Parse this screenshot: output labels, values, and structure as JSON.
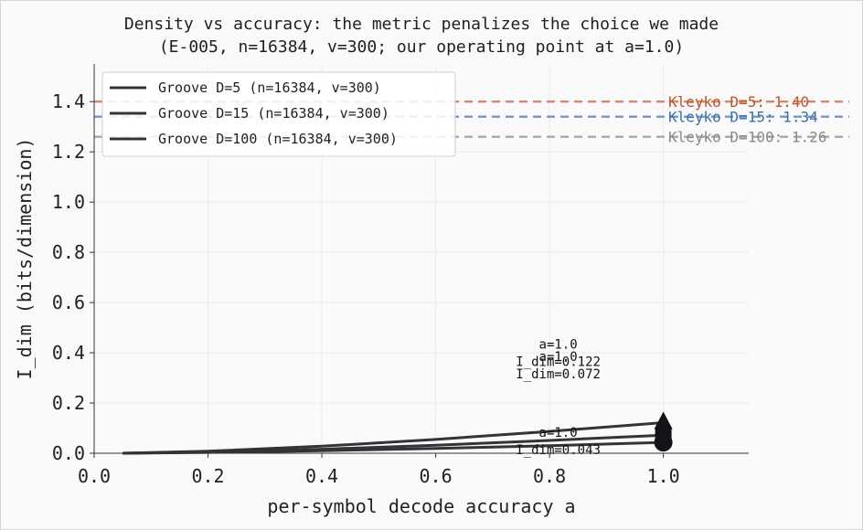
{
  "chart_data": {
    "type": "line",
    "title": "Density vs accuracy: the metric penalizes the choice we made",
    "subtitle": "(E-005, n=16384, v=300; our operating point at a=1.0)",
    "xlabel": "per-symbol decode accuracy a",
    "ylabel": "I_dim (bits/dimension)",
    "xlim": [
      0.0,
      1.15
    ],
    "ylim": [
      0.0,
      1.55
    ],
    "xticks": [
      0.0,
      0.2,
      0.4,
      0.6,
      0.8,
      1.0
    ],
    "yticks": [
      0.0,
      0.2,
      0.4,
      0.6,
      0.8,
      1.0,
      1.2,
      1.4
    ],
    "grid": true,
    "legend_position": "top-left",
    "series": [
      {
        "name": "Groove D=5 (n=16384, v=300)",
        "color": "#333338",
        "marker": "triangle",
        "x": [
          0.05,
          0.2,
          0.4,
          0.6,
          0.8,
          1.0
        ],
        "y": [
          0.0,
          0.008,
          0.028,
          0.055,
          0.087,
          0.122
        ]
      },
      {
        "name": "Groove D=15 (n=16384, v=300)",
        "color": "#333338",
        "marker": "square",
        "x": [
          0.05,
          0.2,
          0.4,
          0.6,
          0.8,
          1.0
        ],
        "y": [
          0.0,
          0.005,
          0.016,
          0.032,
          0.051,
          0.072
        ]
      },
      {
        "name": "Groove D=100 (n=16384, v=300)",
        "color": "#333338",
        "marker": "circle",
        "x": [
          0.05,
          0.2,
          0.4,
          0.6,
          0.8,
          1.0
        ],
        "y": [
          0.0,
          0.003,
          0.01,
          0.019,
          0.03,
          0.043
        ]
      }
    ],
    "reference_lines": [
      {
        "label": "Kleyko D=5: 1.40",
        "y": 1.4,
        "color": "#c0552a",
        "line_color": "#d4896a"
      },
      {
        "label": "Kleyko D=15: 1.34",
        "y": 1.34,
        "color": "#3c6fb0",
        "line_color": "#6f98cc"
      },
      {
        "label": "Kleyko D=100: 1.26",
        "y": 1.26,
        "color": "#8a8a8a",
        "line_color": "#a8a8a8"
      }
    ],
    "annotations": [
      {
        "line1": "a=1.0",
        "line2": "I_dim=0.122",
        "x": 1.0,
        "y": 0.122,
        "placement": "above"
      },
      {
        "line1": "a=1.0",
        "line2": "I_dim=0.072",
        "x": 1.0,
        "y": 0.072,
        "placement": "above"
      },
      {
        "line1": "a=1.0",
        "line2": "I_dim=0.043",
        "x": 1.0,
        "y": 0.043,
        "placement": "below"
      }
    ]
  }
}
